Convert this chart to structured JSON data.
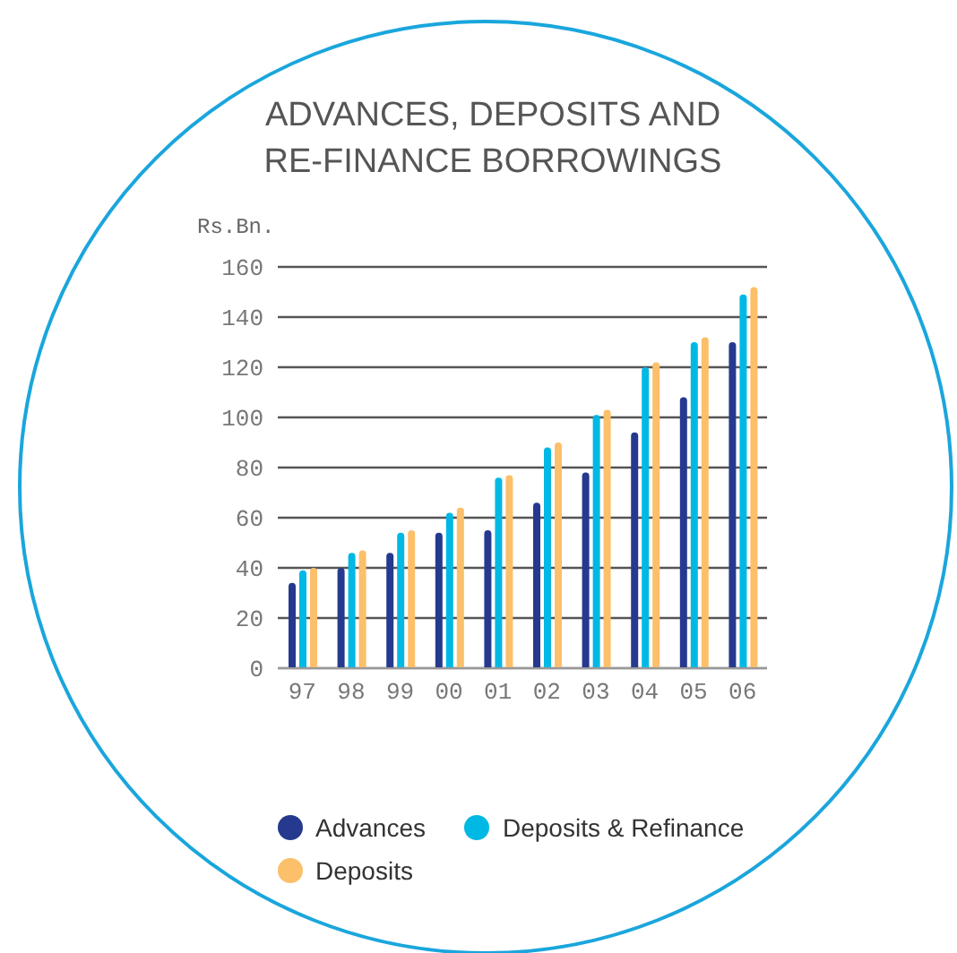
{
  "chart_data": {
    "type": "bar",
    "title": "ADVANCES, DEPOSITS AND\nRE-FINANCE BORROWINGS",
    "ylabel": "Rs.Bn.",
    "categories": [
      "97",
      "98",
      "99",
      "00",
      "01",
      "02",
      "03",
      "04",
      "05",
      "06"
    ],
    "series": [
      {
        "name": "Advances",
        "color": "#253a8e",
        "values": [
          34,
          40,
          46,
          54,
          55,
          66,
          78,
          94,
          108,
          130
        ]
      },
      {
        "name": "Deposits & Refinance",
        "color": "#00b8e4",
        "values": [
          39,
          46,
          54,
          62,
          76,
          88,
          101,
          120,
          130,
          149
        ]
      },
      {
        "name": "Deposits",
        "color": "#fcbf6a",
        "values": [
          40,
          47,
          55,
          64,
          77,
          90,
          103,
          122,
          132,
          152
        ]
      }
    ],
    "ylim": [
      0,
      160
    ],
    "yticks": [
      0,
      20,
      40,
      60,
      80,
      100,
      120,
      140,
      160
    ],
    "grid": "y",
    "legend": "bottom"
  }
}
